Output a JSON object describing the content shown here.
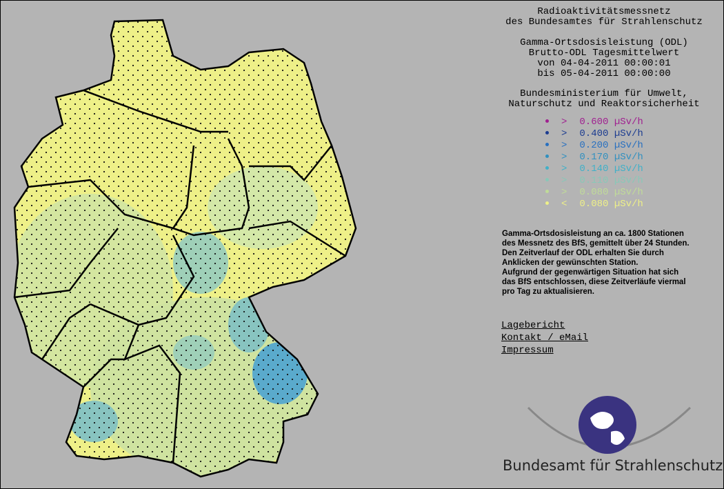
{
  "header": {
    "lines": [
      "Radioaktivitätsmessnetz",
      "des Bundesamtes für Strahlenschutz"
    ]
  },
  "measurement": {
    "lines": [
      "Gamma-Ortsdosisleistung (ODL)",
      "Brutto-ODL Tagesmittelwert",
      "von 04-04-2011 00:00:01",
      "bis 05-04-2011 00:00:00"
    ]
  },
  "ministry": {
    "lines": [
      "Bundesministerium für Umwelt,",
      "Naturschutz und Reaktorsicherheit"
    ]
  },
  "legend": [
    {
      "comparator": ">",
      "label": "0.600 µSv/h",
      "color": "#a02090"
    },
    {
      "comparator": ">",
      "label": "0.400 µSv/h",
      "color": "#1c3c90"
    },
    {
      "comparator": ">",
      "label": "0.200 µSv/h",
      "color": "#2870c0"
    },
    {
      "comparator": ">",
      "label": "0.170 µSv/h",
      "color": "#3090c0"
    },
    {
      "comparator": ">",
      "label": "0.140 µSv/h",
      "color": "#40b0c8"
    },
    {
      "comparator": ">",
      "label": "0.110 µSv/h",
      "color": "#88c8b8"
    },
    {
      "comparator": ">",
      "label": "0.080 µSv/h",
      "color": "#c0dc98"
    },
    {
      "comparator": "<",
      "label": "0.080 µSv/h",
      "color": "#eef088"
    }
  ],
  "description": {
    "lines": [
      "Gamma-Ortsdosisleistung an ca. 1800 Stationen",
      "des Messnetz des BfS, gemittelt über 24 Stunden.",
      "Den Zeitverlauf der ODL erhalten Sie durch",
      "Anklicken der gewünschten Station.",
      "Aufgrund der gegenwärtigen Situation hat sich",
      "das BfS entschlossen, diese Zeitverläufe viermal",
      "pro Tag zu aktualisieren."
    ]
  },
  "links": [
    "Lagebericht",
    "Kontakt / eMail",
    "Impressum"
  ],
  "logo": {
    "text": "Bundesamt für Strahlenschutz"
  }
}
